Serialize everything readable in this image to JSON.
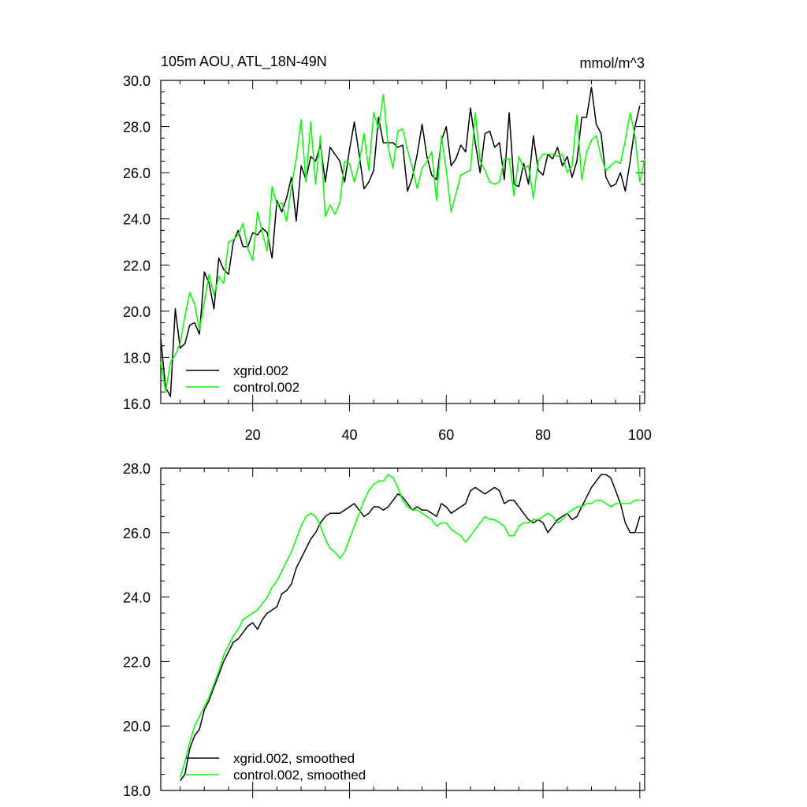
{
  "colors": {
    "xgrid": "#000000",
    "control": "#00ff00",
    "frame": "#000000",
    "background": "#ffffff"
  },
  "chart_data": [
    {
      "type": "line",
      "title": "105m AOU, ATL_18N-49N",
      "units": "mmol/m^3",
      "xlim": [
        1,
        101
      ],
      "ylim": [
        16,
        30
      ],
      "xticks": [
        20,
        40,
        60,
        80,
        100
      ],
      "yticks": [
        "16.0",
        "18.0",
        "20.0",
        "22.0",
        "24.0",
        "26.0",
        "28.0",
        "30.0"
      ],
      "legend_position": "bottom-left",
      "series": [
        {
          "name": "xgrid.002",
          "color": "#000000",
          "x_start": 1,
          "values": [
            18.8,
            16.7,
            16.3,
            20.1,
            18.4,
            18.6,
            19.4,
            19.5,
            19.0,
            21.7,
            21.2,
            20.1,
            22.3,
            21.8,
            21.6,
            23.0,
            23.5,
            22.8,
            22.8,
            23.4,
            23.3,
            23.6,
            23.4,
            22.3,
            24.8,
            24.3,
            24.9,
            25.8,
            23.9,
            26.3,
            25.7,
            26.7,
            26.5,
            27.2,
            25.6,
            27.1,
            26.8,
            26.5,
            25.6,
            27.0,
            28.2,
            26.8,
            25.3,
            25.6,
            26.1,
            28.4,
            27.3,
            27.3,
            27.3,
            27.1,
            27.2,
            25.2,
            25.8,
            26.8,
            28.1,
            26.7,
            25.9,
            25.7,
            27.4,
            28.0,
            26.3,
            26.6,
            27.2,
            26.9,
            28.8,
            27.3,
            26.0,
            27.7,
            27.8,
            27.1,
            27.3,
            25.7,
            28.6,
            25.5,
            25.4,
            26.4,
            25.5,
            27.6,
            26.1,
            25.9,
            26.8,
            26.6,
            27.1,
            26.3,
            26.7,
            25.8,
            26.5,
            28.4,
            28.4,
            29.7,
            28.1,
            27.7,
            25.8,
            25.4,
            25.5,
            26.0,
            25.2,
            26.5,
            28.0,
            28.9
          ]
        },
        {
          "name": "control.002",
          "color": "#00ff00",
          "x_start": 1,
          "values": [
            17.8,
            16.5,
            17.8,
            18.1,
            18.6,
            19.8,
            20.8,
            20.3,
            19.2,
            20.4,
            21.6,
            20.7,
            21.5,
            21.2,
            23.0,
            23.1,
            23.3,
            23.8,
            22.7,
            22.2,
            24.3,
            23.4,
            22.6,
            25.4,
            24.6,
            24.7,
            23.9,
            25.4,
            26.6,
            28.3,
            25.6,
            28.2,
            25.5,
            27.6,
            24.1,
            24.6,
            24.2,
            24.7,
            26.5,
            26.4,
            25.6,
            26.4,
            27.7,
            26.1,
            28.6,
            27.9,
            29.4,
            27.1,
            26.2,
            27.8,
            27.9,
            27.0,
            26.2,
            25.3,
            26.2,
            26.5,
            26.9,
            24.8,
            27.6,
            26.1,
            24.3,
            25.1,
            25.9,
            26.0,
            26.1,
            28.6,
            26.5,
            26.1,
            25.6,
            25.5,
            25.6,
            26.6,
            26.6,
            25.0,
            26.7,
            26.2,
            26.3,
            24.9,
            26.5,
            26.8,
            26.8,
            26.8,
            26.7,
            26.8,
            26.0,
            26.3,
            28.5,
            25.7,
            26.9,
            27.4,
            27.6,
            26.7,
            26.1,
            26.3,
            26.5,
            26.4,
            27.4,
            28.6,
            27.6,
            25.6,
            26.6
          ]
        }
      ]
    },
    {
      "type": "line",
      "xlim": [
        1,
        101
      ],
      "ylim": [
        18,
        28
      ],
      "yticks": [
        "18.0",
        "20.0",
        "22.0",
        "24.0",
        "26.0",
        "28.0"
      ],
      "legend_position": "bottom-left",
      "series": [
        {
          "name": "xgrid.002, smoothed",
          "color": "#000000",
          "x_start": 5,
          "values": [
            18.3,
            18.5,
            19.3,
            19.7,
            19.9,
            20.5,
            20.8,
            21.2,
            21.6,
            22.0,
            22.3,
            22.6,
            22.7,
            22.9,
            23.1,
            23.2,
            23.0,
            23.3,
            23.5,
            23.6,
            23.7,
            24.1,
            24.2,
            24.4,
            24.9,
            25.2,
            25.5,
            25.8,
            26.0,
            26.3,
            26.5,
            26.6,
            26.6,
            26.6,
            26.7,
            26.8,
            26.9,
            26.7,
            26.5,
            26.6,
            26.8,
            26.8,
            26.7,
            26.8,
            27.0,
            27.2,
            27.1,
            26.9,
            26.7,
            26.8,
            26.7,
            26.7,
            26.6,
            26.5,
            26.9,
            26.8,
            26.6,
            26.7,
            26.8,
            26.9,
            27.3,
            27.4,
            27.3,
            27.2,
            27.3,
            27.4,
            27.3,
            26.9,
            27.0,
            27.0,
            26.8,
            26.6,
            26.4,
            26.3,
            26.4,
            26.3,
            26.0,
            26.2,
            26.4,
            26.5,
            26.6,
            26.4,
            26.5,
            26.8,
            27.1,
            27.4,
            27.6,
            27.8,
            27.8,
            27.7,
            27.3,
            26.9,
            26.3,
            26.0,
            26.0,
            26.5
          ]
        },
        {
          "name": "control.002, smoothed",
          "color": "#00ff00",
          "x_start": 5,
          "values": [
            18.4,
            18.9,
            19.5,
            20.0,
            20.3,
            20.6,
            20.9,
            21.3,
            21.7,
            22.2,
            22.5,
            22.8,
            23.0,
            23.3,
            23.4,
            23.5,
            23.6,
            23.8,
            24.0,
            24.3,
            24.5,
            24.8,
            25.1,
            25.4,
            25.8,
            26.2,
            26.5,
            26.6,
            26.5,
            26.2,
            25.8,
            25.5,
            25.4,
            25.2,
            25.4,
            25.8,
            26.2,
            26.6,
            27.0,
            27.3,
            27.5,
            27.6,
            27.6,
            27.8,
            27.7,
            27.4,
            27.0,
            26.8,
            26.7,
            26.7,
            26.6,
            26.5,
            26.4,
            26.2,
            26.3,
            26.3,
            26.1,
            26.0,
            25.9,
            25.7,
            25.9,
            26.1,
            26.3,
            26.5,
            26.4,
            26.4,
            26.3,
            26.2,
            25.9,
            25.9,
            26.2,
            26.3,
            26.3,
            26.4,
            26.4,
            26.5,
            26.6,
            26.5,
            26.3,
            26.4,
            26.6,
            26.7,
            26.8,
            26.8,
            26.9,
            26.9,
            27.0,
            27.0,
            26.9,
            26.8,
            26.9,
            26.9,
            26.9,
            26.9,
            27.0,
            27.0
          ]
        }
      ]
    }
  ]
}
